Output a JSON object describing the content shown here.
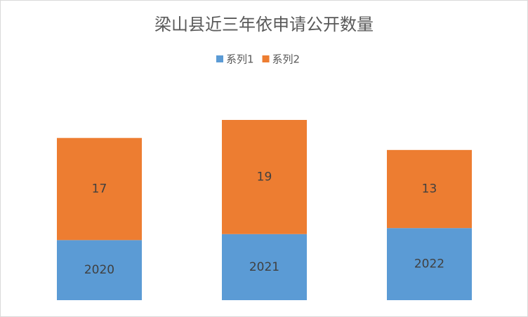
{
  "chart_data": {
    "type": "bar",
    "stacked": true,
    "title": "梁山县近三年依申请公开数量",
    "categories": [
      "2020",
      "2021",
      "2022"
    ],
    "series": [
      {
        "name": "系列1",
        "color": "#5b9bd5",
        "values": [
          10,
          11,
          12
        ]
      },
      {
        "name": "系列2",
        "color": "#ed7d31",
        "values": [
          17,
          19,
          13
        ]
      }
    ],
    "ylim": [
      0,
      30
    ],
    "legend": "top"
  }
}
